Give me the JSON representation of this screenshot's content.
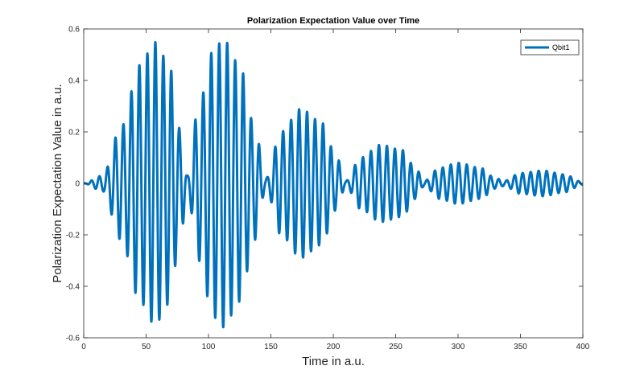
{
  "chart_data": {
    "type": "line",
    "title": "Polarization Expectation Value over Time",
    "xlabel": "Time in a.u.",
    "ylabel": "Polarization Expectation Value in a.u.",
    "xlim": [
      0,
      400
    ],
    "ylim": [
      -0.6,
      0.6
    ],
    "xticks": [
      0,
      50,
      100,
      150,
      200,
      250,
      300,
      350,
      400
    ],
    "yticks": [
      -0.6,
      -0.4,
      -0.2,
      0,
      0.2,
      0.4,
      0.6
    ],
    "xtick_labels": [
      "0",
      "50",
      "100",
      "150",
      "200",
      "250",
      "300",
      "350",
      "400"
    ],
    "ytick_labels": [
      "-0.6",
      "-0.4",
      "-0.2",
      "0",
      "0.2",
      "0.4",
      "0.6"
    ],
    "grid": false,
    "legend_position": "top-right",
    "series": [
      {
        "name": "Qbit1",
        "color": "#0072BD",
        "model": "envelope * sin(2*pi*(t - peak_time)/period + pi/2)",
        "carrier_period": 6.4,
        "carrier_peak_time": 57.4,
        "envelope": [
          [
            0,
            0
          ],
          [
            15,
            0.03
          ],
          [
            30,
            0.22
          ],
          [
            45,
            0.46
          ],
          [
            57,
            0.55
          ],
          [
            68,
            0.47
          ],
          [
            78,
            0.2
          ],
          [
            83,
            0.03
          ],
          [
            92,
            0.3
          ],
          [
            104,
            0.52
          ],
          [
            112,
            0.56
          ],
          [
            125,
            0.46
          ],
          [
            137,
            0.22
          ],
          [
            146,
            0.02
          ],
          [
            158,
            0.2
          ],
          [
            174,
            0.29
          ],
          [
            190,
            0.24
          ],
          [
            203,
            0.1
          ],
          [
            210,
            0.01
          ],
          [
            222,
            0.1
          ],
          [
            238,
            0.15
          ],
          [
            255,
            0.13
          ],
          [
            266,
            0.06
          ],
          [
            273,
            0.01
          ],
          [
            285,
            0.06
          ],
          [
            300,
            0.08
          ],
          [
            318,
            0.06
          ],
          [
            330,
            0.02
          ],
          [
            337,
            0.01
          ],
          [
            350,
            0.04
          ],
          [
            368,
            0.05
          ],
          [
            385,
            0.035
          ],
          [
            400,
            0.005
          ]
        ]
      }
    ]
  }
}
